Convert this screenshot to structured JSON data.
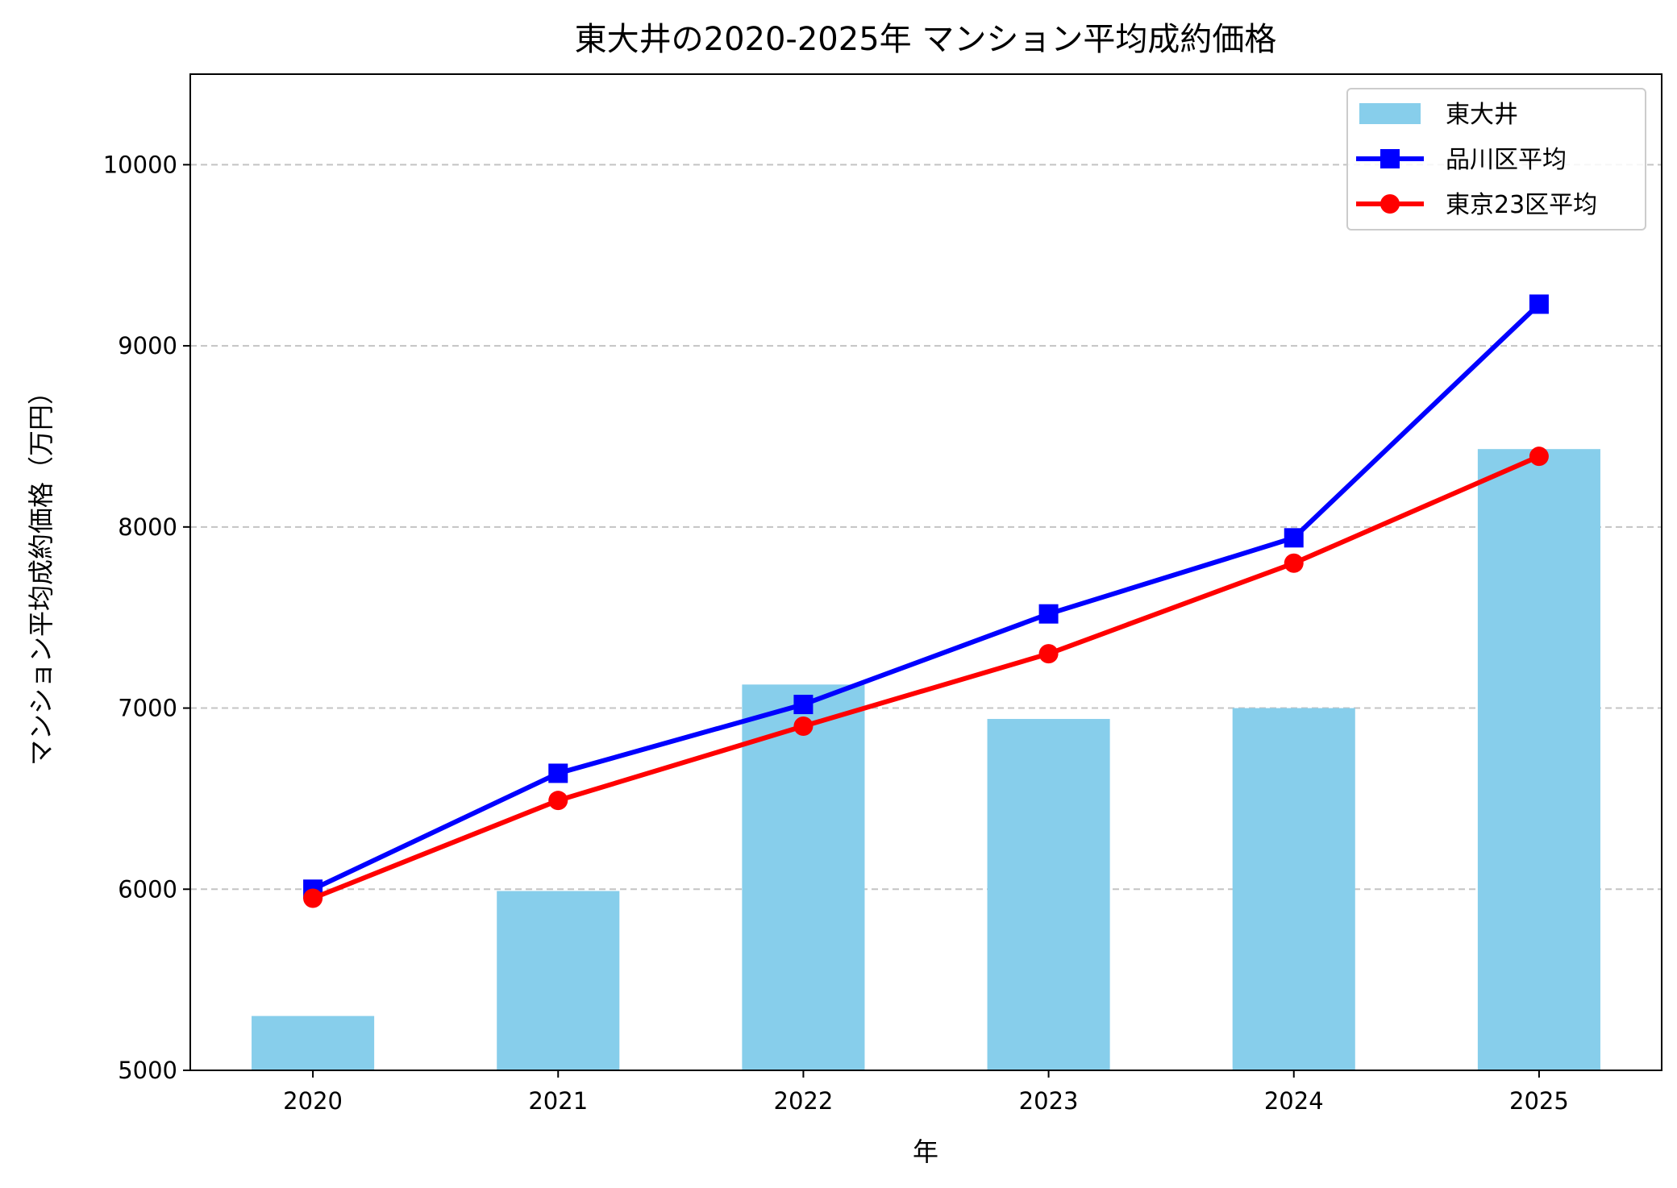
{
  "chart_data": {
    "type": "bar+line",
    "title": "東大井の2020-2025年 マンション平均成約価格",
    "xlabel": "年",
    "ylabel": "マンション平均成約価格（万円）",
    "categories": [
      "2020",
      "2021",
      "2022",
      "2023",
      "2024",
      "2025"
    ],
    "ylim": [
      5000,
      10500
    ],
    "yticks": [
      5000,
      6000,
      7000,
      8000,
      9000,
      10000
    ],
    "grid": "y, dashed",
    "legend_position": "top-right",
    "series": [
      {
        "name": "東大井",
        "type": "bar",
        "color": "#87CEEB",
        "values": [
          5300,
          5990,
          7130,
          6940,
          7000,
          8430
        ]
      },
      {
        "name": "品川区平均",
        "type": "line",
        "marker": "square",
        "color": "#0000FF",
        "values": [
          6000,
          6640,
          7020,
          7520,
          7940,
          9230
        ]
      },
      {
        "name": "東京23区平均",
        "type": "line",
        "marker": "circle",
        "color": "#FF0000",
        "values": [
          5950,
          6490,
          6900,
          7300,
          7800,
          8390
        ]
      }
    ]
  }
}
